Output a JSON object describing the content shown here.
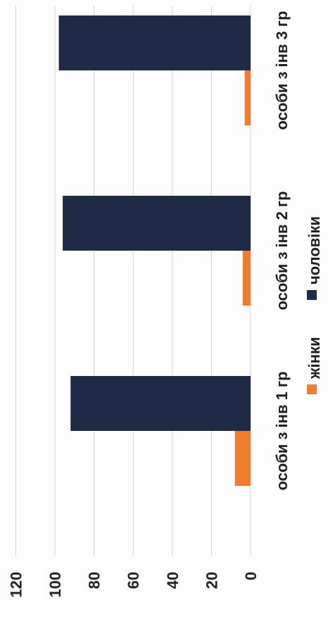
{
  "chart_data": {
    "type": "bar",
    "orientation": "horizontal",
    "categories": [
      "особи з інв 1 гр",
      "особи з інв 2 гр",
      "особи з інв 3 гр"
    ],
    "series": [
      {
        "name": "жінки",
        "color": "#f07c2e",
        "values": [
          8,
          4,
          3
        ]
      },
      {
        "name": "чоловіки",
        "color": "#1f2a47",
        "values": [
          92,
          96,
          98
        ]
      }
    ],
    "ylim": [
      0,
      120
    ],
    "yticks": [
      0,
      20,
      40,
      60,
      80,
      100,
      120
    ],
    "grid": true,
    "legend_position": "bottom",
    "title": "",
    "xlabel": "",
    "ylabel": ""
  }
}
